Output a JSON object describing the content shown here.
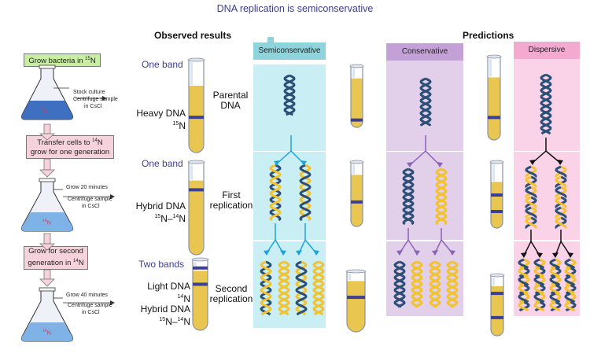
{
  "title": "DNA replication is semiconservative",
  "headers": {
    "observed": "Observed results",
    "predictions": "Predictions"
  },
  "steps": {
    "grow": "Grow bacteria in ",
    "grow_sup": "15",
    "grow_suffix": "N",
    "transfer_a": "Transfer cells to ",
    "transfer_sup": "14",
    "transfer_b": "N",
    "transfer_c": "grow for one generation",
    "second_a": "Grow for second",
    "second_b": "generation in ",
    "second_sup": "14",
    "second_c": "N"
  },
  "flask_labels": {
    "f1_sup": "15",
    "f1": "N",
    "f2_sup": "14",
    "f2": "N",
    "f3_sup": "14",
    "f3": "N"
  },
  "notes": {
    "n1_a": "Stock culture",
    "n1_b": "Centrifuge sample",
    "n1_c": "in CsCl",
    "n2_a": "Grow 20 minutes",
    "n2_b": "Centrifuge sample",
    "n2_c": "in CsCl",
    "n3_a": "Grow 40 minutes",
    "n3_b": "Centrifuge sample",
    "n3_c": "in CsCl"
  },
  "band_labels": {
    "one_band_1": "One band",
    "one_band_2": "One band",
    "two_bands": "Two bands"
  },
  "dna_labels": {
    "heavy": "Heavy DNA",
    "heavy_sup": "15",
    "heavy_n": "N",
    "hybrid1": "Hybrid DNA",
    "hybrid1_sup_a": "15",
    "hybrid1_mid": "N–",
    "hybrid1_sup_b": "14",
    "hybrid1_n": "N",
    "light": "Light DNA",
    "light_sup": "14",
    "light_n": "N",
    "hybrid2": "Hybrid DNA",
    "hybrid2_sup_a": "15",
    "hybrid2_mid": "N–",
    "hybrid2_sup_b": "14",
    "hybrid2_n": "N"
  },
  "row_labels": {
    "parental_a": "Parental",
    "parental_b": "DNA",
    "first_a": "First",
    "first_b": "replication",
    "second_a": "Second",
    "second_b": "replication"
  },
  "columns": {
    "semi": "Semiconservative",
    "cons": "Conservative",
    "disp": "Dispersive"
  },
  "colors": {
    "heavy_strand": "#2b4f76",
    "light_strand": "#f2c230",
    "band": "#3d3f95",
    "semi_bg": "#c9eef3",
    "semi_hdr": "#8fd3dc",
    "cons_bg": "#e2cfe9",
    "cons_hdr": "#c3a1d6",
    "disp_bg": "#fbd3e8",
    "disp_hdr": "#f4a9d1",
    "arrow_semi": "#1aa3dd",
    "arrow_cons": "#8a63b8",
    "arrow_disp": "#111111",
    "flask_liquid": "#3f6fc1",
    "box_green": "#c8eea1",
    "box_pink": "#f6d2dc"
  }
}
